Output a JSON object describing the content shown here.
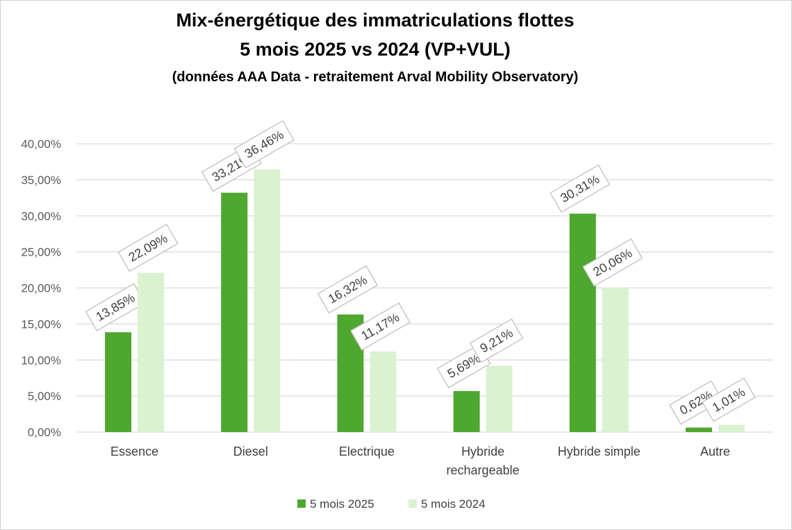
{
  "chart_data": {
    "type": "bar",
    "title": "Mix-énergétique des immatriculations flottes",
    "subtitle": "5 mois 2025 vs 2024 (VP+VUL)",
    "note": "(données AAA Data - retraitement Arval Mobility Observatory)",
    "xlabel": "",
    "ylabel": "",
    "categories": [
      "Essence",
      "Diesel",
      "Electrique",
      "Hybride rechargeable",
      "Hybride simple",
      "Autre"
    ],
    "series": [
      {
        "name": "5 mois 2025",
        "color": "#4EA72E",
        "values": [
          13.85,
          33.21,
          16.32,
          5.69,
          30.31,
          0.62
        ],
        "labels": [
          "13,85%",
          "33,21%",
          "16,32%",
          "5,69%",
          "30,31%",
          "0,62%"
        ]
      },
      {
        "name": "5 mois 2024",
        "color": "#D9F2D0",
        "values": [
          22.09,
          36.46,
          11.17,
          9.21,
          20.06,
          1.01
        ],
        "labels": [
          "22,09%",
          "36,46%",
          "11,17%",
          "9,21%",
          "20,06%",
          "1,01%"
        ]
      }
    ],
    "ylim": [
      0,
      40
    ],
    "yticks": [
      "0,00%",
      "5,00%",
      "10,00%",
      "15,00%",
      "20,00%",
      "25,00%",
      "30,00%",
      "35,00%",
      "40,00%"
    ],
    "grid": true,
    "legend": "bottom"
  }
}
